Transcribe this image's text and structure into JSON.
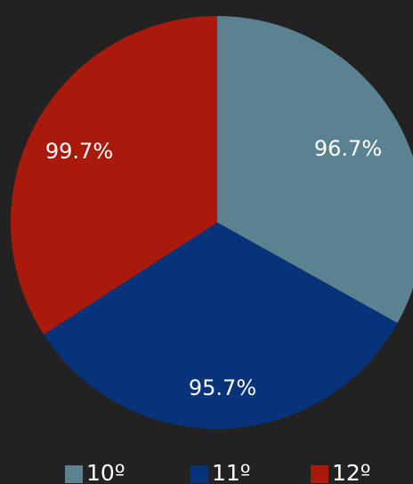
{
  "chart_data": {
    "type": "pie",
    "categories": [
      "10º",
      "11º",
      "12º"
    ],
    "values": [
      96.7,
      95.7,
      99.7
    ],
    "data_labels": [
      "96.7%",
      "95.7%",
      "99.7%"
    ],
    "colors": [
      "#5b8290",
      "#07337a",
      "#aa1a0b"
    ],
    "legend_position": "bottom",
    "background": "#222222"
  }
}
